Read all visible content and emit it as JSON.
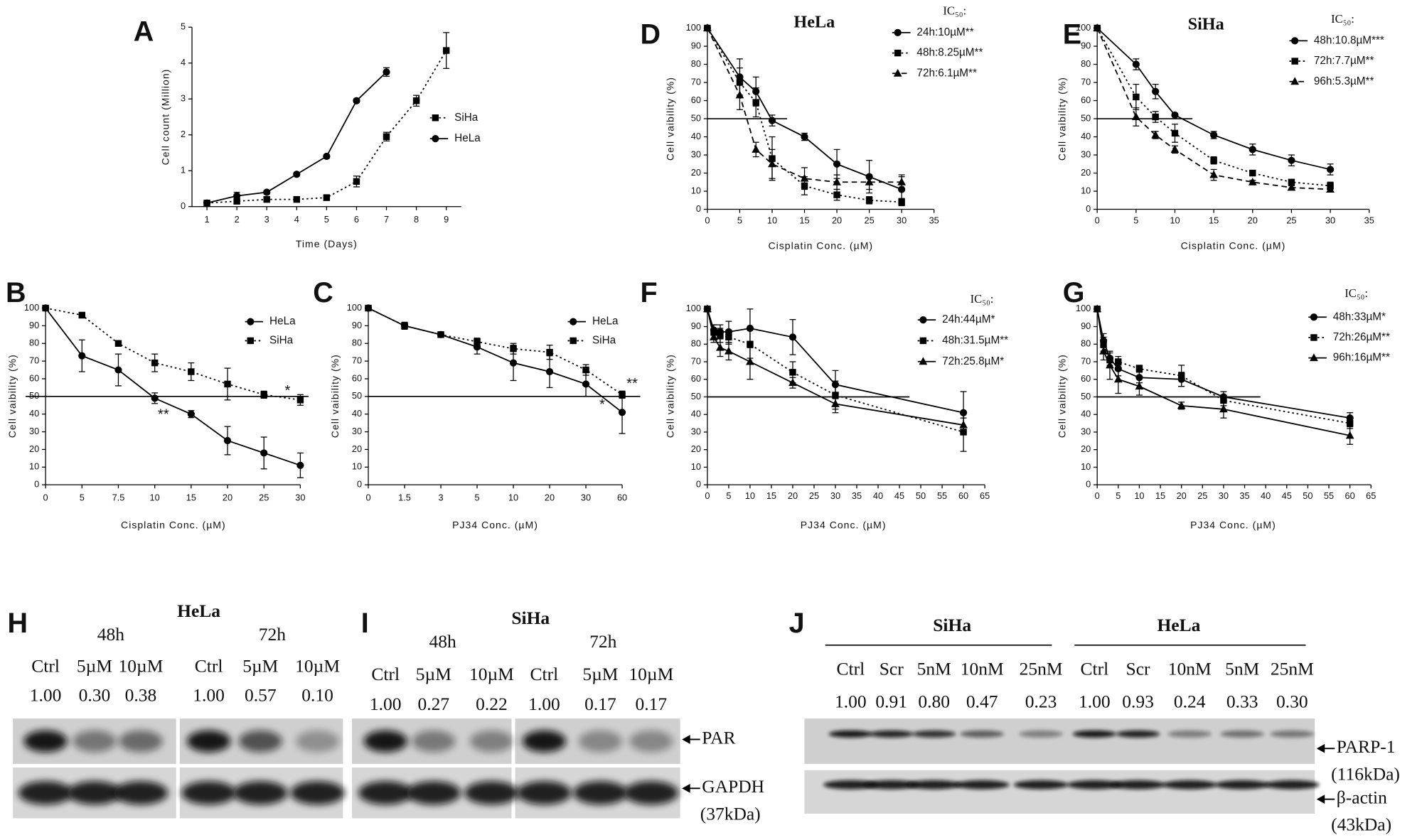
{
  "chart_data": [
    {
      "type": "line",
      "panel": "A",
      "x_label": "Time (Days)",
      "y_label": "Cell count (Million)",
      "categories": [
        "1",
        "2",
        "3",
        "4",
        "5",
        "6",
        "7",
        "8",
        "9"
      ],
      "ylim": [
        0,
        5
      ],
      "yticks": [
        0,
        1,
        2,
        3,
        4,
        5
      ],
      "series": [
        {
          "name": "SiHa",
          "color": "#000",
          "marker": "square",
          "dash": "dotted",
          "values": [
            0.1,
            0.15,
            0.2,
            0.2,
            0.25,
            0.7,
            1.95,
            2.95,
            4.35
          ],
          "errors": [
            0.05,
            0.05,
            0.05,
            0.05,
            0.05,
            0.15,
            0.12,
            0.15,
            0.5
          ]
        },
        {
          "name": "HeLa",
          "color": "#000",
          "marker": "circle",
          "dash": "solid",
          "values": [
            0.1,
            0.3,
            0.4,
            0.9,
            1.4,
            2.95,
            3.75,
            null,
            null
          ],
          "errors": [
            0.05,
            0.1,
            0.05,
            0.05,
            0.05,
            0.05,
            0.12,
            null,
            null
          ]
        }
      ]
    },
    {
      "type": "line",
      "panel": "B",
      "x_label": "Cisplatin Conc. (µM)",
      "y_label": "Cell vaibility (%)",
      "categories": [
        "0",
        "5",
        "7.5",
        "10",
        "15",
        "20",
        "25",
        "30"
      ],
      "ylim": [
        0,
        100
      ],
      "yticks": [
        0,
        10,
        20,
        30,
        40,
        50,
        60,
        70,
        80,
        90,
        100
      ],
      "reference_line": 50,
      "annotations": [
        "**",
        "*"
      ],
      "series": [
        {
          "name": "HeLa",
          "color": "#000",
          "marker": "circle",
          "dash": "solid",
          "values": [
            100,
            73,
            65,
            49,
            40,
            25,
            18,
            11
          ],
          "errors": [
            0,
            9,
            9,
            3,
            2,
            8,
            9,
            7
          ]
        },
        {
          "name": "SiHa",
          "color": "#000",
          "marker": "square",
          "dash": "dotted",
          "values": [
            100,
            96,
            80,
            69,
            64,
            57,
            51,
            48
          ],
          "errors": [
            0,
            1,
            1,
            5,
            5,
            9,
            2,
            3
          ]
        }
      ]
    },
    {
      "type": "line",
      "panel": "C",
      "x_label": "PJ34 Conc. (µM)",
      "y_label": "Cell vaibility (%)",
      "categories": [
        "0",
        "1.5",
        "3",
        "5",
        "10",
        "20",
        "30",
        "60"
      ],
      "ylim": [
        0,
        100
      ],
      "yticks": [
        0,
        10,
        20,
        30,
        40,
        50,
        60,
        70,
        80,
        90,
        100
      ],
      "reference_line": 50,
      "annotations": [
        "*",
        "**"
      ],
      "series": [
        {
          "name": "HeLa",
          "color": "#000",
          "marker": "circle",
          "dash": "solid",
          "values": [
            100,
            90,
            85,
            78,
            69,
            64,
            57,
            41
          ],
          "errors": [
            0,
            2,
            1,
            4,
            10,
            9,
            7,
            12
          ]
        },
        {
          "name": "SiHa",
          "color": "#000",
          "marker": "square",
          "dash": "dotted",
          "values": [
            100,
            90,
            85,
            81,
            77,
            75,
            65,
            51
          ],
          "errors": [
            0,
            1,
            1,
            2,
            3,
            4,
            3,
            2
          ]
        }
      ]
    },
    {
      "type": "line",
      "panel": "D",
      "title": "HeLa",
      "legend_title": "IC₅₀:",
      "x_label": "Cisplatin Conc. (µM)",
      "y_label": "Cell vaibility (%)",
      "x": [
        0,
        5,
        7.5,
        10,
        15,
        20,
        25,
        30
      ],
      "xlim": [
        0,
        35
      ],
      "xticks": [
        0,
        5,
        10,
        15,
        20,
        25,
        30,
        35
      ],
      "ylim": [
        0,
        100
      ],
      "yticks": [
        0,
        10,
        20,
        30,
        40,
        50,
        60,
        70,
        80,
        90,
        100
      ],
      "reference_line": 50,
      "series": [
        {
          "name": "24h:10µM**",
          "color": "#000",
          "marker": "circle",
          "dash": "solid",
          "values": [
            100,
            73,
            65,
            49,
            40,
            25,
            18,
            11
          ],
          "errors": [
            0,
            10,
            8,
            3,
            2,
            8,
            9,
            7
          ]
        },
        {
          "name": "48h:8.25µM**",
          "color": "#000",
          "marker": "square",
          "dash": "dotted",
          "values": [
            100,
            70,
            59,
            28,
            13,
            8,
            5,
            4
          ],
          "errors": [
            0,
            8,
            8,
            12,
            5,
            3,
            2,
            2
          ]
        },
        {
          "name": "72h:6.1µM**",
          "color": "#000",
          "marker": "triangle",
          "dash": "dashed",
          "values": [
            100,
            63,
            33,
            25,
            17,
            15,
            15,
            15
          ],
          "errors": [
            0,
            8,
            4,
            8,
            6,
            4,
            4,
            4
          ]
        }
      ]
    },
    {
      "type": "line",
      "panel": "E",
      "title": "SiHa",
      "legend_title": "IC₅₀:",
      "x_label": "Cisplatin Conc. (µM)",
      "y_label": "Cell vaibility (%)",
      "x": [
        0,
        5,
        7.5,
        10,
        15,
        20,
        25,
        30
      ],
      "xlim": [
        0,
        35
      ],
      "xticks": [
        0,
        5,
        10,
        15,
        20,
        25,
        30,
        35
      ],
      "ylim": [
        0,
        100
      ],
      "yticks": [
        0,
        10,
        20,
        30,
        40,
        50,
        60,
        70,
        80,
        90,
        100
      ],
      "reference_line": 50,
      "series": [
        {
          "name": "48h:10.8µM***",
          "color": "#000",
          "marker": "circle",
          "dash": "solid",
          "values": [
            100,
            80,
            65,
            52,
            41,
            33,
            27,
            22
          ],
          "errors": [
            0,
            3,
            4,
            1,
            2,
            3,
            3,
            3
          ]
        },
        {
          "name": "72h:7.7µM**",
          "color": "#000",
          "marker": "square",
          "dash": "dotted",
          "values": [
            100,
            62,
            51,
            42,
            27,
            20,
            15,
            13
          ],
          "errors": [
            0,
            7,
            3,
            5,
            2,
            1,
            1,
            2
          ]
        },
        {
          "name": "96h:5.3µM**",
          "color": "#000",
          "marker": "triangle",
          "dash": "dashed",
          "values": [
            100,
            51,
            41,
            33,
            19,
            15,
            12,
            11
          ],
          "errors": [
            0,
            5,
            2,
            2,
            3,
            1,
            1,
            1
          ]
        }
      ]
    },
    {
      "type": "line",
      "panel": "F",
      "legend_title": "IC₅₀:",
      "x_label": "PJ34 Conc. (µM)",
      "y_label": "Cell vaibility (%)",
      "x": [
        0,
        1.5,
        3,
        5,
        10,
        20,
        30,
        60
      ],
      "xlim": [
        0,
        65
      ],
      "xticks": [
        0,
        5,
        10,
        15,
        20,
        25,
        30,
        35,
        40,
        45,
        50,
        55,
        60,
        65
      ],
      "ylim": [
        0,
        100
      ],
      "yticks": [
        0,
        10,
        20,
        30,
        40,
        50,
        60,
        70,
        80,
        90,
        100
      ],
      "reference_line": 50,
      "series": [
        {
          "name": "24h:44µM*",
          "color": "#000",
          "marker": "circle",
          "dash": "solid",
          "values": [
            100,
            88,
            87,
            87,
            89,
            84,
            57,
            41
          ],
          "errors": [
            0,
            3,
            4,
            6,
            11,
            10,
            8,
            12
          ]
        },
        {
          "name": "48h:31.5µM**",
          "color": "#000",
          "marker": "square",
          "dash": "dotted",
          "values": [
            100,
            87,
            85,
            84,
            80,
            64,
            51,
            30
          ],
          "errors": [
            0,
            4,
            4,
            4,
            8,
            6,
            8,
            11
          ]
        },
        {
          "name": "72h:25.8µM*",
          "color": "#000",
          "marker": "triangle",
          "dash": "solid",
          "values": [
            100,
            84,
            78,
            76,
            70,
            58,
            46,
            34
          ],
          "errors": [
            0,
            3,
            5,
            5,
            10,
            3,
            5,
            4
          ]
        }
      ]
    },
    {
      "type": "line",
      "panel": "G",
      "legend_title": "IC₅₀:",
      "x_label": "PJ34 Conc. (µM)",
      "y_label": "Cell vaibility (%)",
      "x": [
        0,
        1.5,
        3,
        5,
        10,
        20,
        30,
        60
      ],
      "xlim": [
        0,
        65
      ],
      "xticks": [
        0,
        5,
        10,
        15,
        20,
        25,
        30,
        35,
        40,
        45,
        50,
        55,
        60,
        65
      ],
      "ylim": [
        0,
        100
      ],
      "yticks": [
        0,
        10,
        20,
        30,
        40,
        50,
        60,
        70,
        80,
        90,
        100
      ],
      "reference_line": 50,
      "series": [
        {
          "name": "48h:33µM*",
          "color": "#000",
          "marker": "circle",
          "dash": "solid",
          "values": [
            100,
            82,
            72,
            66,
            61,
            60,
            50,
            38
          ],
          "errors": [
            0,
            4,
            4,
            4,
            3,
            4,
            3,
            3
          ]
        },
        {
          "name": "72h:26µM**",
          "color": "#000",
          "marker": "square",
          "dash": "dotted",
          "values": [
            100,
            80,
            71,
            70,
            66,
            62,
            48,
            35
          ],
          "errors": [
            0,
            4,
            4,
            3,
            2,
            6,
            3,
            3
          ]
        },
        {
          "name": "96h:16µM**",
          "color": "#000",
          "marker": "triangle",
          "dash": "solid",
          "values": [
            100,
            76,
            68,
            60,
            56,
            45,
            43,
            28
          ],
          "errors": [
            0,
            5,
            8,
            8,
            5,
            2,
            5,
            5
          ]
        }
      ]
    }
  ],
  "blots": [
    {
      "panel": "H",
      "title": "HeLa",
      "groups": [
        "48h",
        "72h"
      ],
      "lanes": [
        "Ctrl",
        "5µM",
        "10µM",
        "Ctrl",
        "5µM",
        "10µM"
      ],
      "values": [
        "1.00",
        "0.30",
        "0.38",
        "1.00",
        "0.57",
        "0.10"
      ],
      "labels": []
    },
    {
      "panel": "I",
      "title": "SiHa",
      "groups": [
        "48h",
        "72h"
      ],
      "lanes": [
        "Ctrl",
        "5µM",
        "10µM",
        "Ctrl",
        "5µM",
        "10µM"
      ],
      "values": [
        "1.00",
        "0.27",
        "0.22",
        "1.00",
        "0.17",
        "0.17"
      ],
      "labels": [
        "PAR",
        "GAPDH",
        "(37kDa)"
      ]
    },
    {
      "panel": "J",
      "groups": [
        "SiHa",
        "HeLa"
      ],
      "lanes": [
        "Ctrl",
        "Scr",
        "5nM",
        "10nM",
        "25nM",
        "Ctrl",
        "Scr",
        "10nM",
        "5nM",
        "25nM"
      ],
      "values": [
        "1.00",
        "0.91",
        "0.80",
        "0.47",
        "0.23",
        "1.00",
        "0.93",
        "0.24",
        "0.33",
        "0.30"
      ],
      "labels": [
        "PARP-1",
        "(116kDa)",
        "β-actin",
        "(43kDa)"
      ]
    }
  ]
}
